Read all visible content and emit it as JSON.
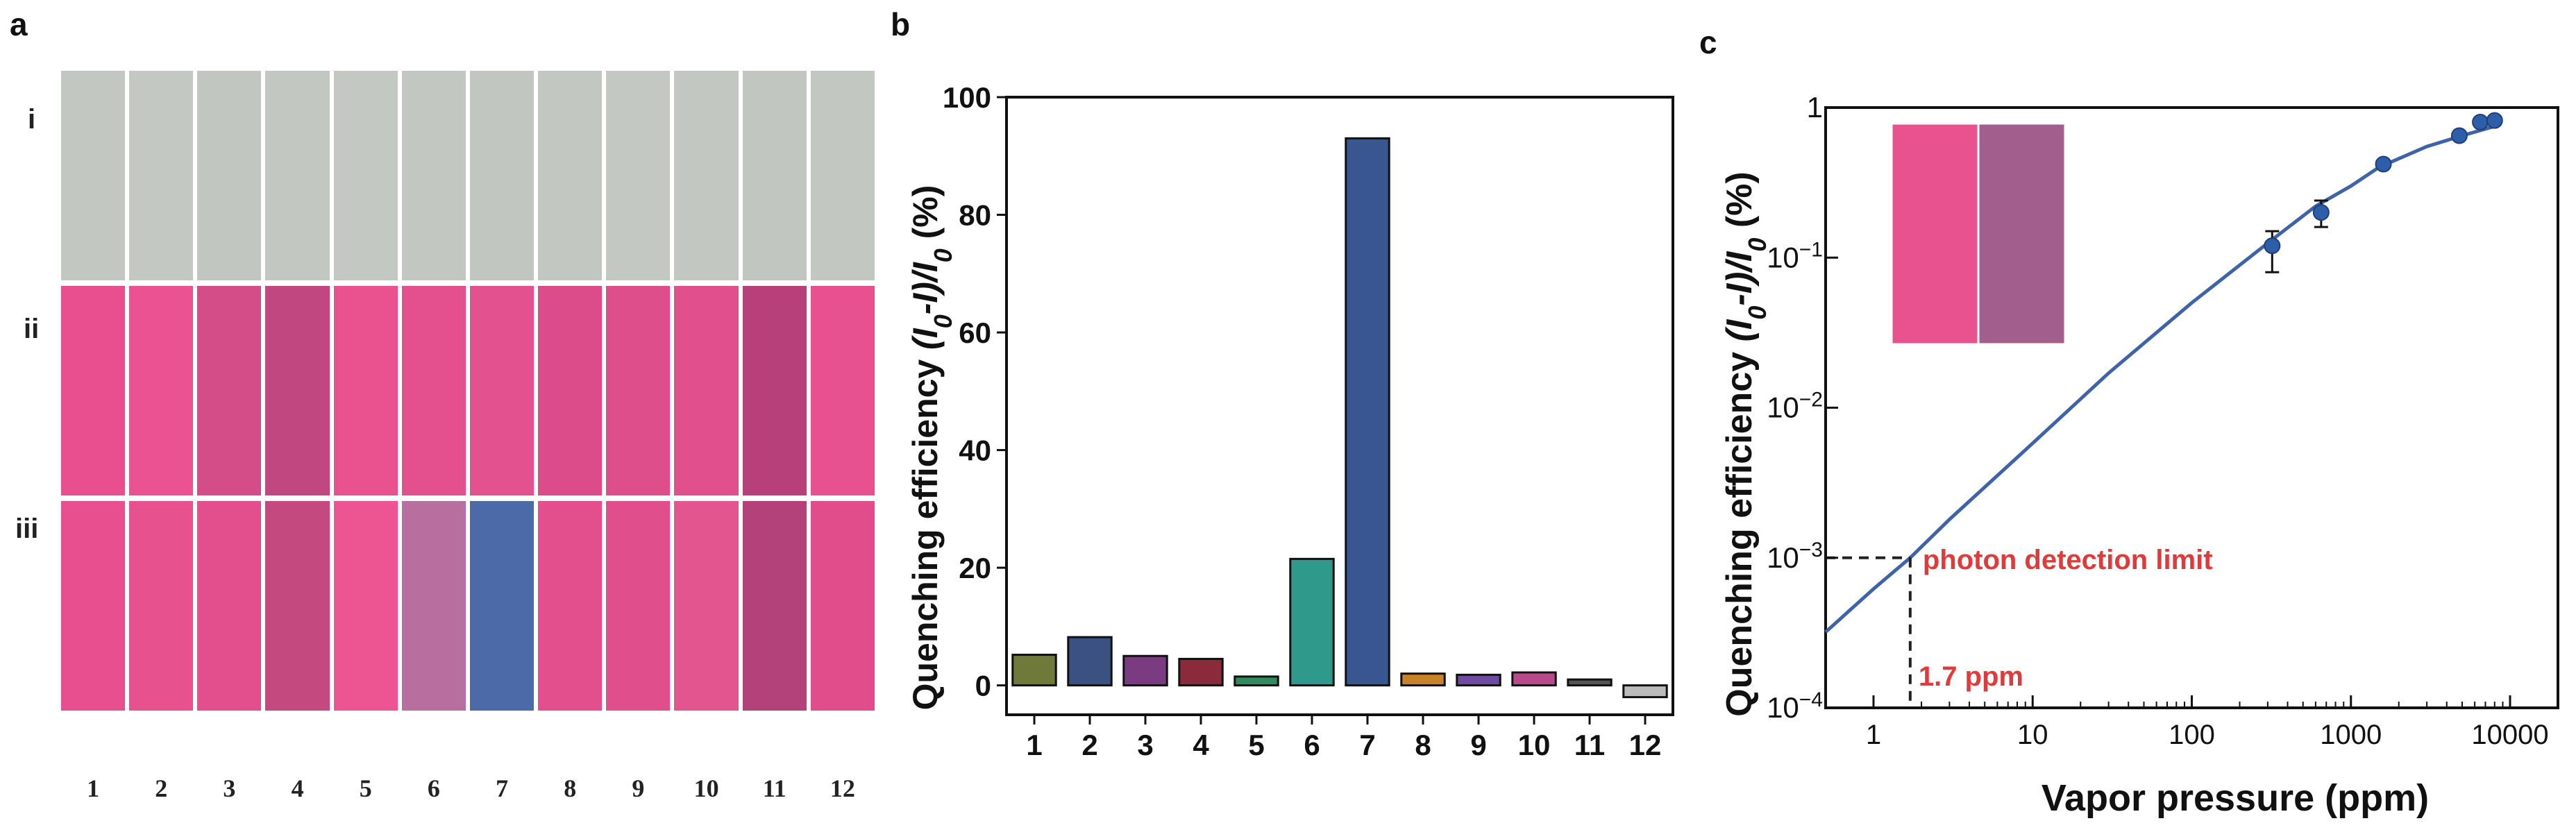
{
  "panels": {
    "a": {
      "letter": "a",
      "row_labels": [
        "i",
        "ii",
        "iii"
      ],
      "column_labels": [
        "1",
        "2",
        "3",
        "4",
        "5",
        "6",
        "7",
        "8",
        "9",
        "10",
        "11",
        "12"
      ],
      "row_colors": {
        "i": [
          "#c3c7c1",
          "#c4c8c2",
          "#c2c6c0",
          "#c3c7c1",
          "#c4c8c2",
          "#c3c7c1",
          "#c2c6c0",
          "#c3c7c1",
          "#c4c8c2",
          "#c3c7c1",
          "#c2c6c0",
          "#c3c7c1"
        ],
        "ii": [
          "#e94f8f",
          "#ea5291",
          "#d54d88",
          "#c04780",
          "#e9528f",
          "#e44f8d",
          "#e3518e",
          "#dc4c8a",
          "#de4e8b",
          "#e14f8c",
          "#b8407a",
          "#e8518f"
        ],
        "iii": [
          "#e84f8f",
          "#e7518e",
          "#e34f8c",
          "#c4497f",
          "#ec5592",
          "#b86e9e",
          "#4d6aa8",
          "#e34f8c",
          "#e04f8b",
          "#e3558f",
          "#b4427a",
          "#e04d8a"
        ]
      }
    },
    "b": {
      "letter": "b",
      "ylabel_text": "Quenching efficiency ",
      "ylabel_math": "(I0-I)/I0",
      "ylabel_unit": " (%)"
    },
    "c": {
      "letter": "c",
      "ylabel_text": "Quenching efficiency ",
      "ylabel_math": "(I0-I)/I0",
      "ylabel_unit": " (%)",
      "xlabel": "Vapor pressure (ppm)",
      "annotation_limit": "photon detection limit",
      "annotation_ppm": "1.7 ppm",
      "inset_colors": [
        "#e8538f",
        "#a25f8e"
      ]
    }
  },
  "chart_data": [
    {
      "type": "bar",
      "panel": "b",
      "categories": [
        "1",
        "2",
        "3",
        "4",
        "5",
        "6",
        "7",
        "8",
        "9",
        "10",
        "11",
        "12"
      ],
      "values": [
        5.2,
        8.2,
        5.0,
        4.5,
        1.5,
        21.5,
        93.0,
        2.0,
        1.8,
        2.2,
        1.0,
        -2.0
      ],
      "colors": [
        "#6f7a3a",
        "#3b5182",
        "#7a3b80",
        "#8a2a3a",
        "#2f8a5e",
        "#2f9a8c",
        "#3a5690",
        "#c8822a",
        "#6e4aa0",
        "#b84a8c",
        "#555555",
        "#bbbbbb"
      ],
      "ylim": [
        -5,
        100
      ],
      "yticks": [
        0,
        20,
        40,
        60,
        80,
        100
      ],
      "ytick_labels": [
        "0",
        "20",
        "40",
        "60",
        "80",
        "100"
      ]
    },
    {
      "type": "line",
      "panel": "c",
      "log_x": true,
      "log_y": true,
      "xlim": [
        0.5,
        20000
      ],
      "ylim": [
        0.0001,
        1.0
      ],
      "xticks": [
        1,
        10,
        100,
        1000,
        10000
      ],
      "xtick_labels": [
        "1",
        "10",
        "100",
        "1000",
        "10000"
      ],
      "yticks": [
        0.0001,
        0.001,
        0.01,
        0.1,
        1
      ],
      "ytick_bases": [
        "10",
        "10",
        "10",
        "10",
        "1"
      ],
      "ytick_exps": [
        "−4",
        "−3",
        "−2",
        "−1",
        ""
      ],
      "fit_x": [
        0.5,
        1,
        1.7,
        3,
        10,
        30,
        100,
        300,
        600,
        1000,
        1500,
        3000,
        5000,
        8000
      ],
      "fit_y": [
        0.00032,
        0.00062,
        0.001,
        0.0018,
        0.0058,
        0.017,
        0.05,
        0.125,
        0.22,
        0.3,
        0.4,
        0.55,
        0.65,
        0.75
      ],
      "points": [
        {
          "x": 320,
          "y": 0.12,
          "err_lo": 0.08,
          "err_hi": 0.15
        },
        {
          "x": 650,
          "y": 0.2,
          "err_lo": 0.16,
          "err_hi": 0.24
        },
        {
          "x": 1600,
          "y": 0.42,
          "err_lo": 0.4,
          "err_hi": 0.44
        },
        {
          "x": 4800,
          "y": 0.65,
          "err_lo": 0.63,
          "err_hi": 0.67
        },
        {
          "x": 6500,
          "y": 0.8,
          "err_lo": 0.78,
          "err_hi": 0.82
        },
        {
          "x": 8000,
          "y": 0.82,
          "err_lo": 0.8,
          "err_hi": 0.84
        }
      ],
      "detection_limit_y": 0.001,
      "detection_limit_x": 1.7
    }
  ]
}
